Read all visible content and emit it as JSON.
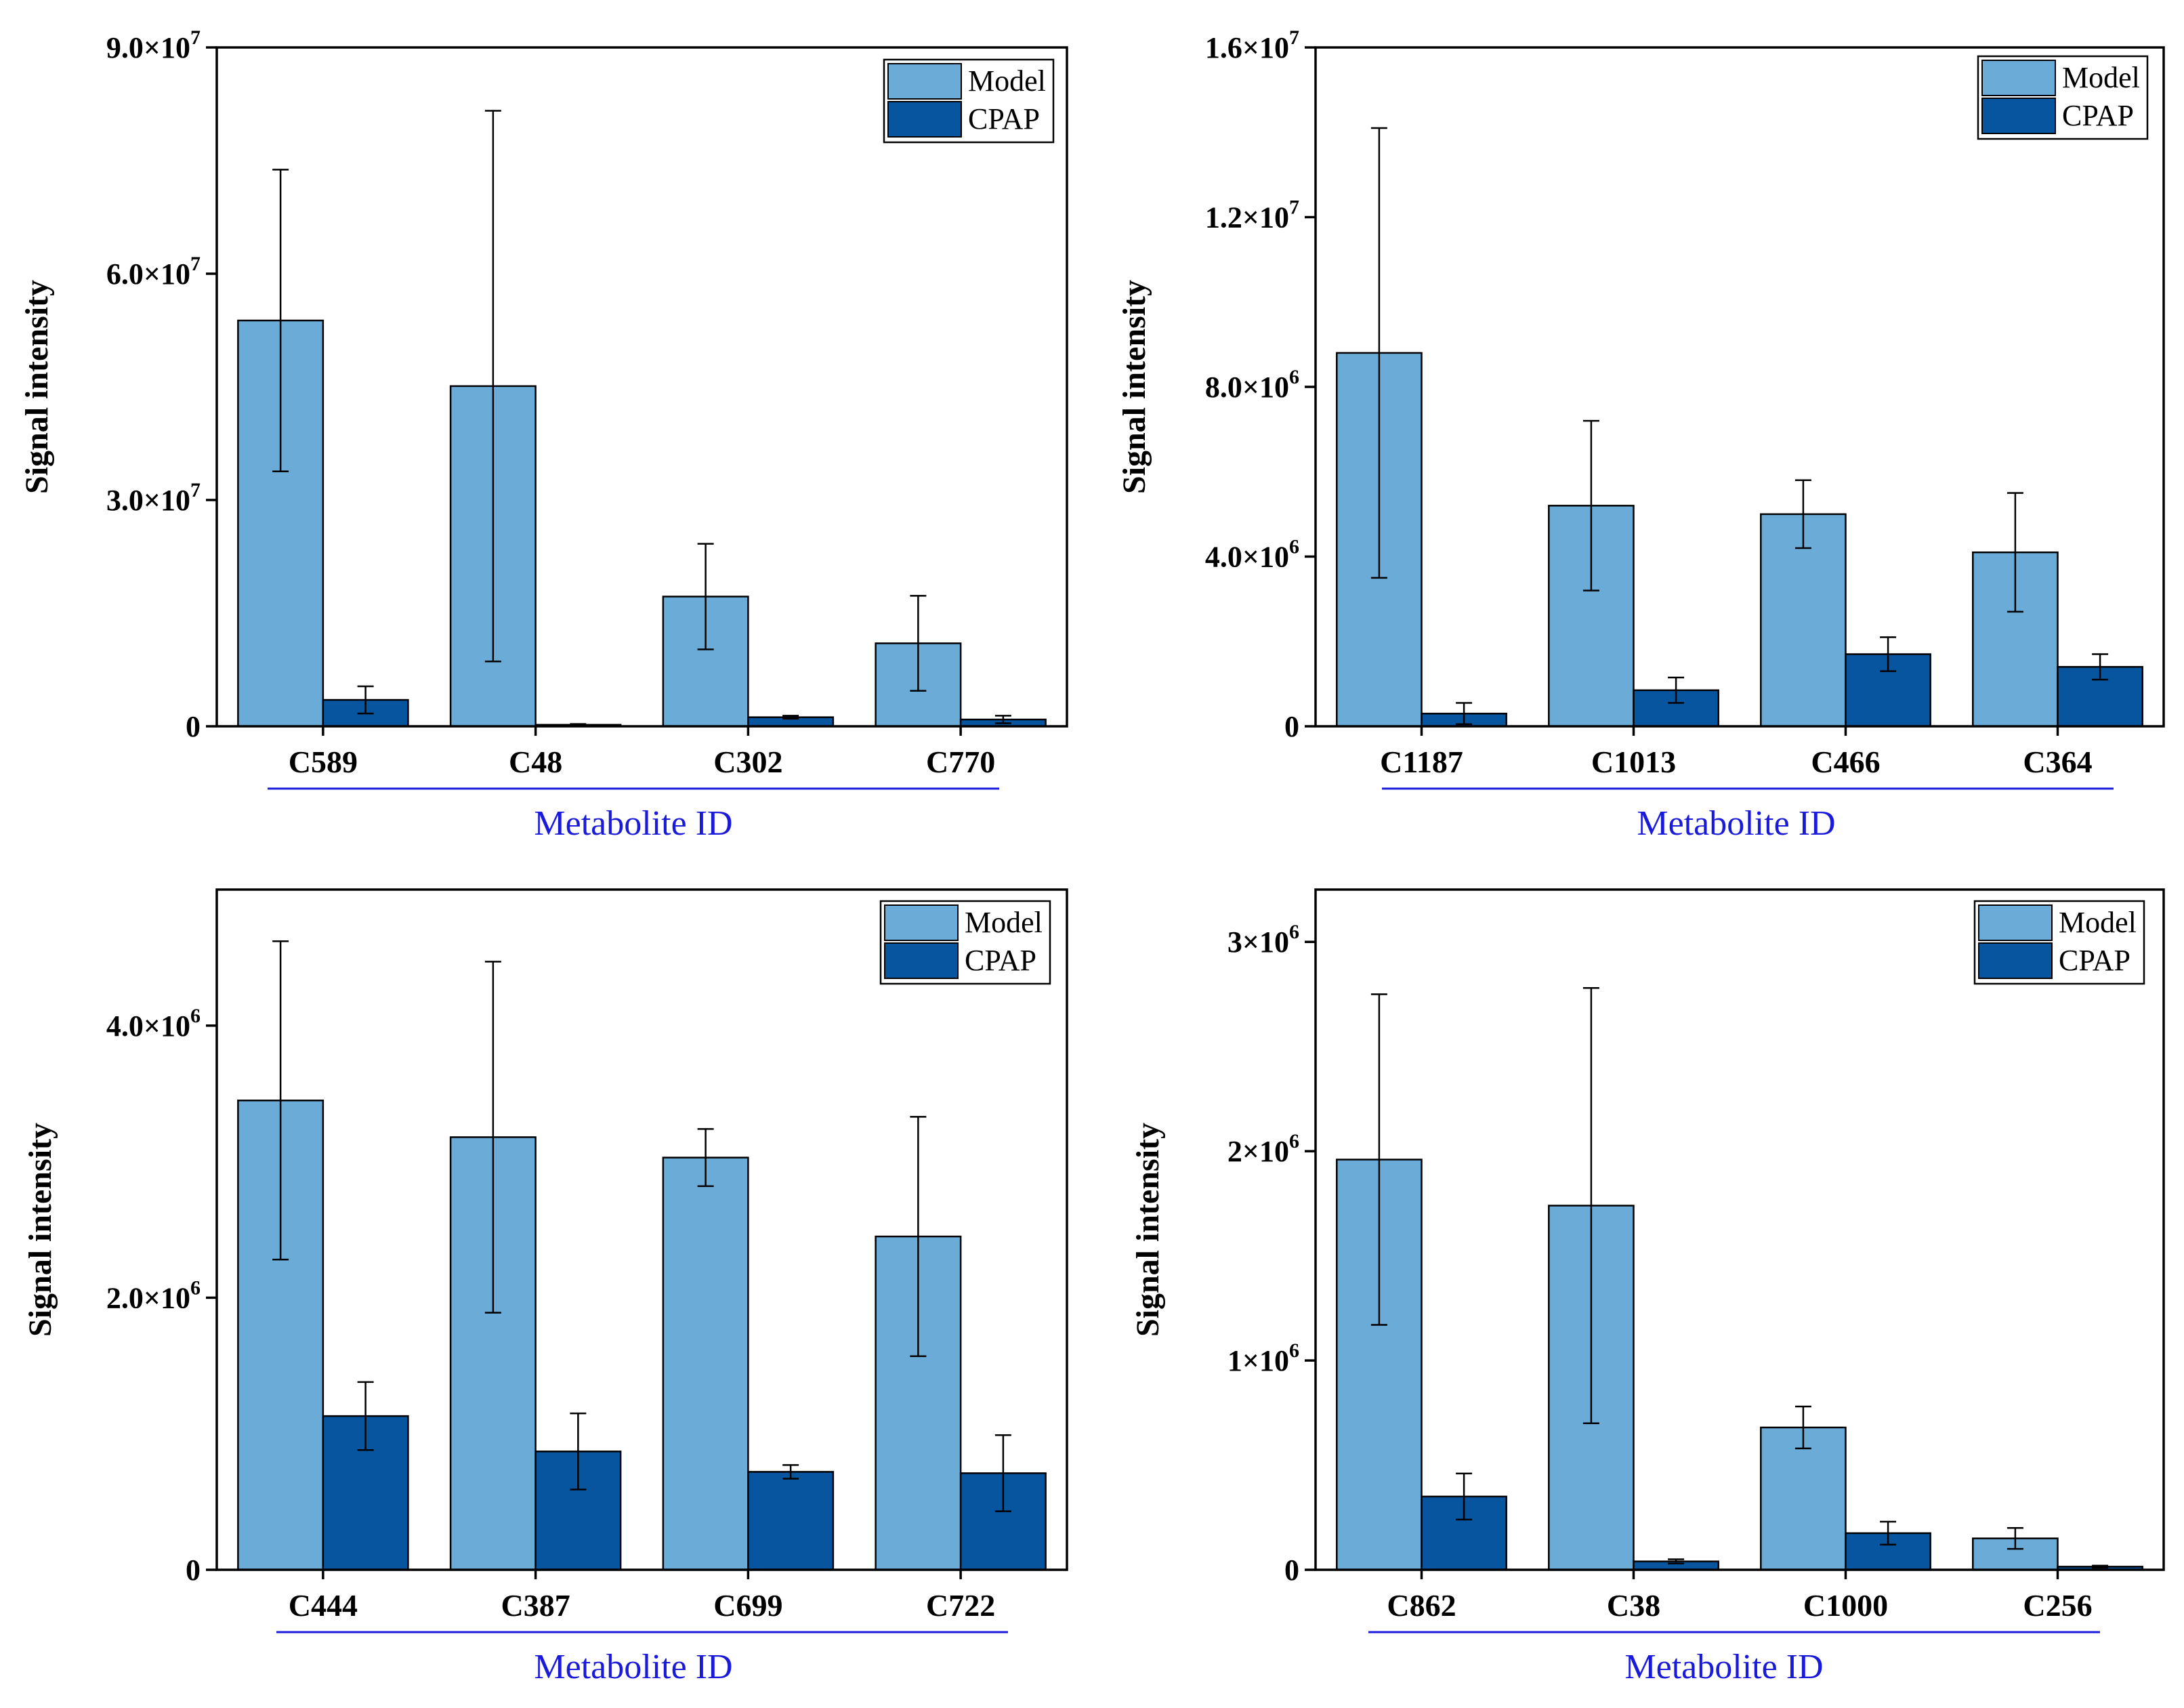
{
  "chart_data": [
    {
      "type": "bar",
      "ylabel": "Signal intensity",
      "xlabel": "Metabolite ID",
      "ylim": [
        0,
        90000000
      ],
      "yticks": [
        {
          "value": 0,
          "mant": "0",
          "exp": ""
        },
        {
          "value": 30000000,
          "mant": "3.0×10",
          "exp": "7"
        },
        {
          "value": 60000000,
          "mant": "6.0×10",
          "exp": "7"
        },
        {
          "value": 90000000,
          "mant": "9.0×10",
          "exp": "7"
        }
      ],
      "categories": [
        "C589",
        "C48",
        "C302",
        "C770"
      ],
      "series": [
        {
          "name": "Model",
          "color": "#6aabd8",
          "values": [
            53800000,
            45100000,
            17200000,
            11000000
          ],
          "errors": [
            20000000,
            36500000,
            7000000,
            6300000
          ]
        },
        {
          "name": "CPAP",
          "color": "#06559e",
          "values": [
            3500000,
            200000,
            1200000,
            900000
          ],
          "errors": [
            1800000,
            100000,
            200000,
            500000
          ]
        }
      ]
    },
    {
      "type": "bar",
      "ylabel": "Signal intensity",
      "xlabel": "Metabolite ID",
      "ylim": [
        0,
        16000000
      ],
      "yticks": [
        {
          "value": 0,
          "mant": "0",
          "exp": ""
        },
        {
          "value": 4000000,
          "mant": "4.0×10",
          "exp": "6"
        },
        {
          "value": 8000000,
          "mant": "8.0×10",
          "exp": "6"
        },
        {
          "value": 12000000,
          "mant": "1.2×10",
          "exp": "7"
        },
        {
          "value": 16000000,
          "mant": "1.6×10",
          "exp": "7"
        }
      ],
      "categories": [
        "C1187",
        "C1013",
        "C466",
        "C364"
      ],
      "series": [
        {
          "name": "Model",
          "color": "#6aabd8",
          "values": [
            8800000,
            5200000,
            5000000,
            4100000
          ],
          "errors": [
            5300000,
            2000000,
            800000,
            1400000
          ]
        },
        {
          "name": "CPAP",
          "color": "#06559e",
          "values": [
            300000,
            850000,
            1700000,
            1400000
          ],
          "errors": [
            250000,
            300000,
            400000,
            300000
          ]
        }
      ]
    },
    {
      "type": "bar",
      "ylabel": "Signal intensity",
      "xlabel": "Metabolite ID",
      "ylim": [
        0,
        5000000
      ],
      "yticks": [
        {
          "value": 0,
          "mant": "0",
          "exp": ""
        },
        {
          "value": 2000000,
          "mant": "2.0×10",
          "exp": "6"
        },
        {
          "value": 4000000,
          "mant": "4.0×10",
          "exp": "6"
        }
      ],
      "categories": [
        "C444",
        "C387",
        "C699",
        "C722"
      ],
      "series": [
        {
          "name": "Model",
          "color": "#6aabd8",
          "values": [
            3450000,
            3180000,
            3030000,
            2450000
          ],
          "errors": [
            1170000,
            1290000,
            210000,
            880000
          ]
        },
        {
          "name": "CPAP",
          "color": "#06559e",
          "values": [
            1130000,
            870000,
            720000,
            710000
          ],
          "errors": [
            250000,
            280000,
            50000,
            280000
          ]
        }
      ]
    },
    {
      "type": "bar",
      "ylabel": "Signal intensity",
      "xlabel": "Metabolite ID",
      "ylim": [
        0,
        3250000
      ],
      "yticks": [
        {
          "value": 0,
          "mant": "0",
          "exp": ""
        },
        {
          "value": 1000000,
          "mant": "1×10",
          "exp": "6"
        },
        {
          "value": 2000000,
          "mant": "2×10",
          "exp": "6"
        },
        {
          "value": 3000000,
          "mant": "3×10",
          "exp": "6"
        }
      ],
      "categories": [
        "C862",
        "C38",
        "C1000",
        "C256"
      ],
      "series": [
        {
          "name": "Model",
          "color": "#6aabd8",
          "values": [
            1960000,
            1740000,
            680000,
            150000
          ],
          "errors": [
            790000,
            1040000,
            100000,
            50000
          ]
        },
        {
          "name": "CPAP",
          "color": "#06559e",
          "values": [
            350000,
            40000,
            175000,
            15000
          ],
          "errors": [
            110000,
            10000,
            55000,
            5000
          ]
        }
      ]
    }
  ]
}
